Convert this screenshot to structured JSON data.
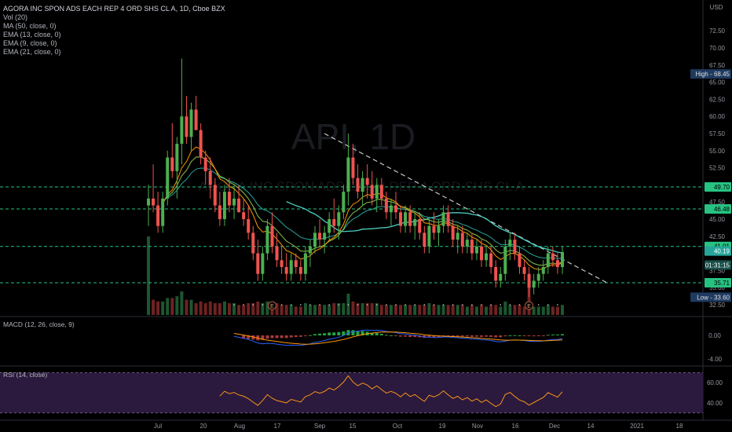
{
  "legend": {
    "title": "AGORA INC SPON ADS EACH REP 4 ORD SHS CL A, 1D, Cboe BZX",
    "vol": "Vol (20)",
    "ma": "MA (50, close, 0)",
    "ema13": "EMA (13, close, 0)",
    "ema9": "EMA (9, close, 0)",
    "ema21": "EMA (21, close, 0)"
  },
  "watermark": {
    "symbol": "API, 1D",
    "name": "AGORA INC SPON ADS EACH REP 4 ORD SHS CL A"
  },
  "macd_label": "MACD (12, 26, close, 9)",
  "rsi_label": "RSI (14, close)",
  "colors": {
    "up": "#26a69a",
    "up_bright": "#4caf50",
    "down": "#ef5350",
    "support_line": "#26c281",
    "trend_line": "#c8c8c8",
    "ma50": "#4dd0c4",
    "ema13": "#8bc34a",
    "ema9": "#ff9800",
    "ema21": "#26a69a",
    "macd": "#2962ff",
    "signal": "#ff9800",
    "rsi": "#f7931a",
    "rsi_band": "#2b1a3d",
    "price_tag": "#26a69a",
    "range_tag": "#1e3a5f"
  },
  "chart_data": [
    {
      "type": "candlestick",
      "currency": "USD",
      "ylim": [
        31,
        77
      ],
      "y_ticks": [
        32.5,
        35,
        37.5,
        40,
        42.5,
        45,
        47.5,
        50,
        52.5,
        55,
        57.5,
        60,
        62.5,
        65,
        67.5,
        70,
        72.5
      ],
      "x_ticks": [
        "Jul",
        "20",
        "Aug",
        "17",
        "Sep",
        "15",
        "Oct",
        "19",
        "Nov",
        "16",
        "Dec",
        "14",
        "2021",
        "18"
      ],
      "horizontal_levels": [
        49.7,
        46.48,
        41.01,
        35.71
      ],
      "high": {
        "label": "High",
        "value": "68.45"
      },
      "low": {
        "label": "Low",
        "value": "33.60"
      },
      "last_price": "40.19",
      "countdown": "01:31:15",
      "trend_line": {
        "from": {
          "date": "Sep 2",
          "price": 57.5
        },
        "to": {
          "date": "Dec 17",
          "price": 35.7
        }
      },
      "candles_ohlc": [
        [
          47,
          50,
          44,
          48
        ],
        [
          48,
          53,
          46,
          47
        ],
        [
          47,
          49,
          43,
          44
        ],
        [
          44,
          49,
          43,
          48
        ],
        [
          48,
          55,
          47,
          54
        ],
        [
          54,
          59,
          51,
          52
        ],
        [
          52,
          57,
          48,
          56
        ],
        [
          56,
          68.45,
          53,
          60
        ],
        [
          60,
          63,
          56,
          57
        ],
        [
          57,
          62,
          55,
          61
        ],
        [
          61,
          63,
          58,
          58
        ],
        [
          58,
          59,
          53,
          54
        ],
        [
          54,
          55,
          50,
          52
        ],
        [
          52,
          54,
          48,
          50
        ],
        [
          50,
          51,
          46,
          47
        ],
        [
          47,
          49,
          44,
          45
        ],
        [
          45,
          50,
          44,
          49
        ],
        [
          49,
          51,
          46,
          47
        ],
        [
          47,
          50,
          45,
          48
        ],
        [
          48,
          50,
          46,
          46
        ],
        [
          46,
          48,
          44,
          45
        ],
        [
          45,
          47,
          42,
          43
        ],
        [
          43,
          44,
          39,
          40
        ],
        [
          40,
          42,
          36,
          37
        ],
        [
          37,
          41,
          36,
          40
        ],
        [
          40,
          45,
          39,
          44
        ],
        [
          44,
          46,
          40,
          41
        ],
        [
          41,
          43,
          38,
          39
        ],
        [
          39,
          41,
          37,
          38
        ],
        [
          38,
          40,
          36,
          37
        ],
        [
          37,
          40,
          36,
          39
        ],
        [
          39,
          40,
          37,
          38
        ],
        [
          38,
          39,
          36,
          37
        ],
        [
          37,
          41,
          36,
          40
        ],
        [
          40,
          42,
          38,
          41
        ],
        [
          41,
          44,
          40,
          43
        ],
        [
          43,
          45,
          41,
          42
        ],
        [
          42,
          44,
          40,
          43
        ],
        [
          43,
          46,
          42,
          45
        ],
        [
          45,
          48,
          43,
          44
        ],
        [
          44,
          47,
          42,
          46
        ],
        [
          46,
          50,
          45,
          49
        ],
        [
          49,
          57.5,
          47,
          54
        ],
        [
          54,
          56,
          50,
          51
        ],
        [
          51,
          53,
          48,
          49
        ],
        [
          49,
          52,
          47,
          51
        ],
        [
          51,
          53,
          48,
          50
        ],
        [
          50,
          52,
          47,
          48
        ],
        [
          48,
          51,
          46,
          50
        ],
        [
          50,
          51,
          47,
          48
        ],
        [
          48,
          49,
          45,
          46
        ],
        [
          46,
          48,
          44,
          47
        ],
        [
          47,
          49,
          45,
          46
        ],
        [
          46,
          47,
          43,
          44
        ],
        [
          44,
          47,
          43,
          46
        ],
        [
          46,
          47,
          43,
          44
        ],
        [
          44,
          46,
          42,
          45
        ],
        [
          45,
          46,
          42,
          43
        ],
        [
          43,
          44,
          40,
          41
        ],
        [
          41,
          45,
          40,
          44
        ],
        [
          44,
          46,
          42,
          43
        ],
        [
          43,
          45,
          41,
          44
        ],
        [
          44,
          47,
          43,
          46
        ],
        [
          46,
          47,
          43,
          44
        ],
        [
          44,
          45,
          41,
          42
        ],
        [
          42,
          44,
          40,
          43
        ],
        [
          43,
          44,
          40,
          41
        ],
        [
          41,
          43,
          40,
          42
        ],
        [
          42,
          43,
          39,
          40
        ],
        [
          40,
          42,
          39,
          41
        ],
        [
          41,
          42,
          38,
          39
        ],
        [
          39,
          41,
          38,
          40
        ],
        [
          40,
          41,
          37,
          38
        ],
        [
          38,
          39,
          35,
          36
        ],
        [
          36,
          38,
          35,
          37
        ],
        [
          37,
          42,
          36,
          41
        ],
        [
          41,
          43,
          39,
          42
        ],
        [
          42,
          43,
          39,
          40
        ],
        [
          40,
          41,
          37,
          38
        ],
        [
          38,
          39,
          36,
          37
        ],
        [
          37,
          38,
          33.6,
          35
        ],
        [
          35,
          37,
          34,
          36
        ],
        [
          36,
          38,
          35,
          37
        ],
        [
          37,
          39,
          36,
          38
        ],
        [
          38,
          41,
          37,
          40
        ],
        [
          40,
          41,
          38,
          39
        ],
        [
          39,
          40,
          37,
          38
        ],
        [
          38,
          41,
          37,
          40.19
        ]
      ]
    },
    {
      "type": "macd",
      "y_ticks": [
        0.0,
        -4.0
      ]
    },
    {
      "type": "rsi",
      "y_ticks": [
        60.0,
        40.0
      ]
    }
  ]
}
